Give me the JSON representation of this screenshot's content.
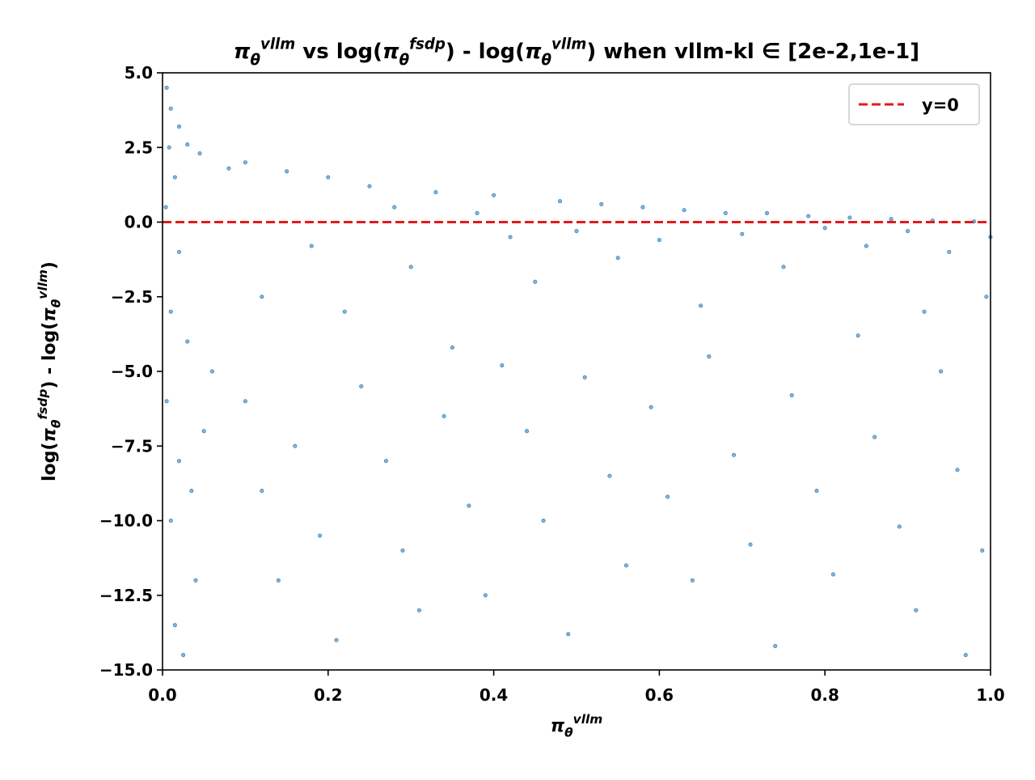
{
  "chart_data": {
    "type": "scatter",
    "title": [
      {
        "text": "π"
      },
      {
        "text": "θ",
        "script": "sub"
      },
      {
        "text": "vllm",
        "script": "sup"
      },
      {
        "text": " vs log("
      },
      {
        "text": "π"
      },
      {
        "text": "θ",
        "script": "sub"
      },
      {
        "text": "fsdp",
        "script": "sup"
      },
      {
        "text": ") - log("
      },
      {
        "text": "π"
      },
      {
        "text": "θ",
        "script": "sub"
      },
      {
        "text": "vllm",
        "script": "sup"
      },
      {
        "text": ") when vllm-kl ∈ [2e-2,1e-1]"
      }
    ],
    "x_label": [
      {
        "text": "π"
      },
      {
        "text": "θ",
        "script": "sub"
      },
      {
        "text": "vllm",
        "script": "sup"
      }
    ],
    "y_label": [
      {
        "text": "log("
      },
      {
        "text": "π"
      },
      {
        "text": "θ",
        "script": "sub"
      },
      {
        "text": "fsdp",
        "script": "sup"
      },
      {
        "text": ") - log("
      },
      {
        "text": "π"
      },
      {
        "text": "θ",
        "script": "sub"
      },
      {
        "text": "vllm",
        "script": "sup"
      },
      {
        "text": ")"
      }
    ],
    "xlim": [
      0,
      1
    ],
    "ylim": [
      -15,
      5
    ],
    "xticks": [
      {
        "value": 0,
        "label": "0.0"
      },
      0.2,
      0.4,
      0.6,
      0.8,
      {
        "value": 1,
        "label": "1.0"
      }
    ],
    "yticks": [
      {
        "value": 5,
        "label": "5.0"
      },
      2.5,
      {
        "value": 0,
        "label": "0.0"
      },
      {
        "value": -2.5,
        "label": "−2.5"
      },
      {
        "value": -5,
        "label": "−5.0"
      },
      {
        "value": -7.5,
        "label": "−7.5"
      },
      {
        "value": -10,
        "label": "−10.0"
      },
      {
        "value": -12.5,
        "label": "−12.5"
      },
      {
        "value": -15,
        "label": "−15.0"
      }
    ],
    "color": "#1f77b4",
    "x": [
      0.005,
      0.01,
      0.02,
      0.008,
      0.015,
      0.03,
      0.004,
      0.02,
      0.01,
      0.03,
      0.005,
      0.02,
      0.01,
      0.04,
      0.015,
      0.025,
      0.05,
      0.035,
      0.045,
      0.06,
      0.08,
      0.1,
      0.12,
      0.15,
      0.18,
      0.2,
      0.22,
      0.25,
      0.28,
      0.3,
      0.33,
      0.35,
      0.38,
      0.4,
      0.42,
      0.45,
      0.48,
      0.5,
      0.53,
      0.55,
      0.58,
      0.6,
      0.63,
      0.65,
      0.68,
      0.7,
      0.73,
      0.75,
      0.78,
      0.8,
      0.83,
      0.85,
      0.88,
      0.9,
      0.93,
      0.95,
      0.98,
      1.0,
      0.1,
      0.12,
      0.14,
      0.16,
      0.19,
      0.21,
      0.24,
      0.27,
      0.29,
      0.31,
      0.34,
      0.37,
      0.39,
      0.41,
      0.44,
      0.46,
      0.49,
      0.51,
      0.54,
      0.56,
      0.59,
      0.61,
      0.64,
      0.66,
      0.69,
      0.71,
      0.74,
      0.76,
      0.79,
      0.81,
      0.84,
      0.86,
      0.89,
      0.91,
      0.94,
      0.96,
      0.99,
      0.995,
      0.97,
      0.92
    ],
    "y": [
      4.5,
      3.8,
      3.2,
      2.5,
      1.5,
      2.6,
      0.5,
      -1,
      -3,
      -4,
      -6,
      -8,
      -10,
      -12,
      -13.5,
      -14.5,
      -7,
      -9,
      2.3,
      -5,
      1.8,
      2.0,
      -2.5,
      1.7,
      -0.8,
      1.5,
      -3,
      1.2,
      0.5,
      -1.5,
      1.0,
      -4.2,
      0.3,
      0.9,
      -0.5,
      -2,
      0.7,
      -0.3,
      0.6,
      -1.2,
      0.5,
      -0.6,
      0.4,
      -2.8,
      0.3,
      -0.4,
      0.3,
      -1.5,
      0.2,
      -0.2,
      0.15,
      -0.8,
      0.1,
      -0.3,
      0.05,
      -1,
      0.02,
      -0.5,
      -6,
      -9,
      -12,
      -7.5,
      -10.5,
      -14,
      -5.5,
      -8,
      -11,
      -13,
      -6.5,
      -9.5,
      -12.5,
      -4.8,
      -7,
      -10,
      -13.8,
      -5.2,
      -8.5,
      -11.5,
      -6.2,
      -9.2,
      -12,
      -4.5,
      -7.8,
      -10.8,
      -14.2,
      -5.8,
      -9,
      -11.8,
      -3.8,
      -7.2,
      -10.2,
      -13,
      -5,
      -8.3,
      -11,
      -2.5,
      -14.5,
      -3
    ],
    "hline": {
      "y": 0,
      "label": "y=0",
      "color": "#e31a1c",
      "style": "dashed"
    },
    "legend": "upper right"
  }
}
